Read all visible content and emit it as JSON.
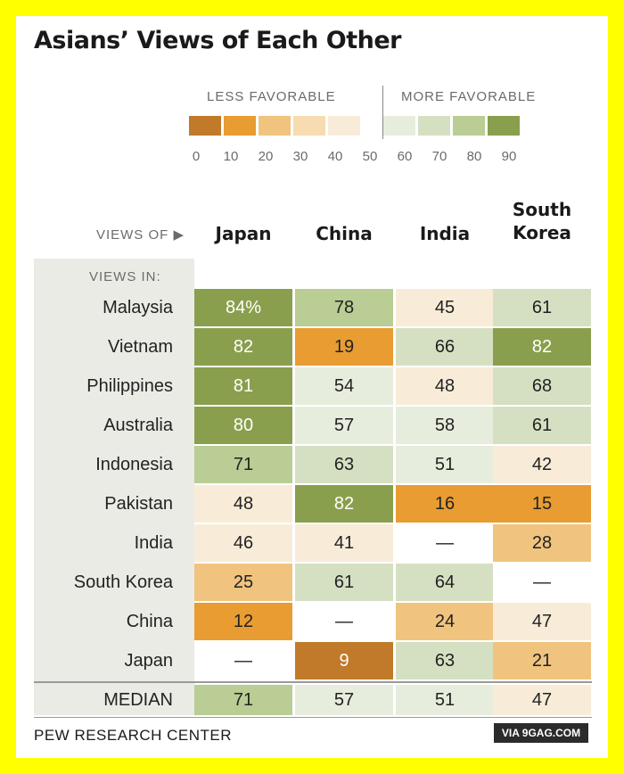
{
  "colors": {
    "frame": "#ffff00",
    "scale": [
      "#c17a2a",
      "#e89c32",
      "#f0c47e",
      "#f6dcb0",
      "#f8ecd9",
      "#e7eddd",
      "#d5e0c2",
      "#b9cd94",
      "#8a9f4d"
    ],
    "empty": "#ffffff"
  },
  "chart_data": {
    "type": "table",
    "title": "Asians’ Views of Each Other",
    "legend": {
      "less_label": "LESS FAVORABLE",
      "more_label": "MORE FAVORABLE",
      "ticks": [
        "0",
        "10",
        "20",
        "30",
        "40",
        "50",
        "60",
        "70",
        "80",
        "90"
      ]
    },
    "views_of_label": "VIEWS OF",
    "views_in_label": "VIEWS IN:",
    "columns": [
      "Japan",
      "China",
      "India",
      "South Korea"
    ],
    "rows": [
      {
        "name": "Malaysia",
        "values": [
          84,
          78,
          45,
          61
        ],
        "first_suffix": "%"
      },
      {
        "name": "Vietnam",
        "values": [
          82,
          19,
          66,
          82
        ]
      },
      {
        "name": "Philippines",
        "values": [
          81,
          54,
          48,
          68
        ]
      },
      {
        "name": "Australia",
        "values": [
          80,
          57,
          58,
          61
        ]
      },
      {
        "name": "Indonesia",
        "values": [
          71,
          63,
          51,
          42
        ]
      },
      {
        "name": "Pakistan",
        "values": [
          48,
          82,
          16,
          15
        ]
      },
      {
        "name": "India",
        "values": [
          46,
          41,
          null,
          28
        ]
      },
      {
        "name": "South Korea",
        "values": [
          25,
          61,
          64,
          null
        ]
      },
      {
        "name": "China",
        "values": [
          12,
          null,
          24,
          47
        ]
      },
      {
        "name": "Japan",
        "values": [
          null,
          9,
          63,
          21
        ]
      }
    ],
    "median": {
      "label": "MEDIAN",
      "values": [
        71,
        57,
        51,
        47
      ]
    },
    "missing_symbol": "—"
  },
  "source": "PEW RESEARCH CENTER",
  "watermark": "VIA 9GAG.COM"
}
